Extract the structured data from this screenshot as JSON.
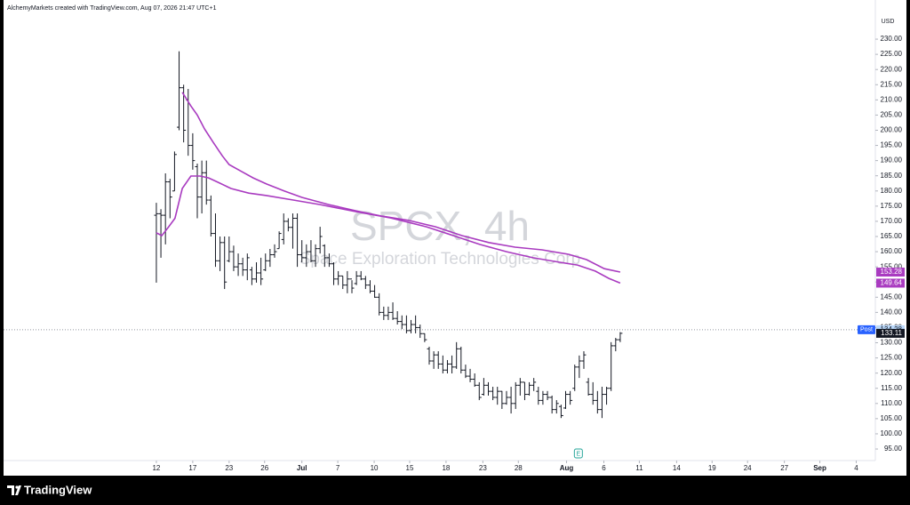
{
  "header": {
    "attribution": "AlchemyMarkets created with TradingView.com, Aug 07, 2026 21:47 UTC+1"
  },
  "branding": "TradingView",
  "chart_data": {
    "type": "ohlc",
    "title": "SPCX, 4h",
    "subtitle": "Space Exploration Technologies Corp",
    "currency": "USD",
    "color": "#131722",
    "grid": false,
    "log_scale": false,
    "x": [
      0,
      1,
      2,
      3,
      4,
      5,
      6,
      7,
      8,
      9,
      10,
      11,
      12,
      13,
      14,
      15,
      16,
      17,
      18,
      19,
      20,
      21,
      22,
      23,
      24,
      25,
      26,
      27,
      28,
      29,
      30,
      31,
      32,
      33,
      34,
      35,
      36,
      37,
      38,
      39,
      40,
      41,
      42,
      43,
      44,
      45,
      46,
      47,
      48,
      49,
      50,
      51,
      52,
      53,
      54,
      55,
      56,
      57,
      58,
      59,
      60,
      61,
      62,
      63,
      64,
      65,
      66,
      67,
      68,
      69,
      70,
      71,
      72,
      73,
      74,
      75,
      76,
      77,
      78,
      79,
      80,
      81,
      82,
      83,
      84,
      85,
      86,
      87,
      88,
      89,
      90,
      91,
      92,
      93,
      94,
      95,
      96,
      97,
      98,
      99,
      100,
      101,
      102
    ],
    "open": [
      172,
      172.5,
      172,
      183,
      180,
      201,
      214,
      210,
      195,
      188,
      178,
      186,
      177,
      166,
      157,
      163,
      157,
      160,
      155,
      156,
      154,
      154,
      151,
      153,
      154,
      157,
      159,
      161,
      164,
      170,
      168,
      171,
      159,
      158,
      160,
      157,
      161,
      162,
      158,
      156,
      151,
      152,
      149,
      151,
      149.5,
      152,
      151,
      149,
      147,
      145,
      140,
      139,
      140,
      138,
      137,
      136,
      134,
      136,
      135,
      133,
      128,
      124,
      126,
      123,
      121,
      123,
      122,
      128,
      121,
      119,
      118,
      116,
      113,
      116,
      114,
      112,
      114,
      110,
      112,
      110,
      116,
      117,
      113,
      116,
      114,
      111,
      113,
      112,
      108,
      109,
      108.5,
      113,
      115,
      122,
      124,
      117,
      113,
      111,
      108,
      113,
      115,
      129,
      131
    ],
    "high": [
      176.1,
      174,
      185.8,
      184,
      193,
      226,
      215,
      213.6,
      199,
      189,
      190,
      190,
      178.5,
      172.6,
      165,
      165,
      165,
      162,
      159.4,
      158,
      159.4,
      155,
      156.5,
      158,
      159.4,
      160.9,
      162.4,
      166.7,
      172.6,
      171,
      172.6,
      172.6,
      163.8,
      162.4,
      163.8,
      162.4,
      168.2,
      162.4,
      159.4,
      156.5,
      153.6,
      152,
      153.6,
      150.6,
      153.6,
      153.6,
      152,
      150.6,
      149,
      146.3,
      141.9,
      141.9,
      143.3,
      140.4,
      139,
      139,
      137.5,
      139,
      136,
      133.1,
      128.7,
      127.2,
      127.2,
      125.8,
      124.3,
      125.8,
      130.2,
      128.7,
      122.8,
      121.4,
      119.9,
      117,
      118.4,
      117,
      115.5,
      115.5,
      114.1,
      114.1,
      115.5,
      117,
      118.4,
      117,
      117,
      118.4,
      115.5,
      114.1,
      114.1,
      112.6,
      111.1,
      109.6,
      114.1,
      114.1,
      122.8,
      125.8,
      127.2,
      118.4,
      117,
      114.1,
      115.5,
      115.5,
      130.2,
      131.6,
      133.5
    ],
    "low": [
      149.8,
      158,
      162.4,
      171,
      180,
      200,
      196,
      191.6,
      187,
      171,
      172.6,
      175.5,
      165,
      155,
      153.6,
      147.7,
      156.5,
      153.6,
      152,
      152,
      150.6,
      149,
      149.8,
      149,
      153.6,
      155,
      158,
      161,
      162.4,
      166.7,
      161,
      155,
      156.5,
      155,
      156.5,
      155,
      159.4,
      155,
      155,
      149,
      149,
      147.7,
      146.3,
      146.3,
      149,
      150.6,
      147.7,
      146.3,
      144.8,
      139,
      137.5,
      137.5,
      137.5,
      136,
      134.5,
      133.1,
      133.1,
      133.1,
      131.6,
      130.2,
      122.8,
      121.4,
      121.4,
      119.9,
      119.9,
      119.9,
      121.4,
      119.9,
      118.4,
      117,
      115.5,
      111.1,
      112.6,
      112.6,
      111.1,
      109.6,
      108.2,
      109.6,
      106.7,
      108.2,
      112.6,
      111.1,
      112.6,
      114.1,
      109.6,
      109.6,
      111.1,
      106.7,
      106.7,
      105.2,
      108.2,
      109.6,
      114.1,
      118.4,
      121.4,
      112.6,
      109.6,
      106.7,
      105.2,
      109.6,
      114.1,
      127.2,
      130.2
    ],
    "close": [
      172.5,
      172,
      183,
      178,
      192,
      214,
      200,
      195,
      190,
      178,
      186,
      177,
      166,
      157,
      163,
      150,
      160,
      155,
      156,
      154,
      158,
      151,
      153,
      151,
      157,
      159,
      160,
      166,
      170,
      168,
      171,
      159,
      158,
      160,
      157,
      161,
      165,
      158,
      156,
      151,
      152,
      149,
      151,
      148,
      152,
      151,
      149,
      147,
      145,
      140,
      139,
      140,
      138,
      137,
      136,
      134,
      136,
      135,
      133,
      131,
      124,
      126,
      123,
      121,
      123,
      122,
      128,
      121,
      119,
      118,
      116,
      112,
      116,
      114,
      112,
      114,
      110,
      112,
      110,
      116,
      117,
      113,
      116,
      117,
      111,
      113,
      112,
      108,
      110,
      106,
      113,
      111,
      122,
      124,
      126,
      113,
      111,
      108,
      113,
      115,
      129,
      131,
      133.11
    ],
    "series": [
      {
        "color": "#a93bc0",
        "x": [
          5.7,
          7.6,
          9.0,
          10.6,
          12.5,
          14.5,
          16.0,
          18.4,
          21.3,
          24.2,
          28.1,
          32.0,
          37.9,
          43.8,
          49.6,
          55.5,
          61.4,
          67.2,
          73.1,
          78.9,
          84.8,
          90.7,
          94.6,
          98.5,
          102
        ],
        "values": [
          212.5,
          208,
          205,
          200.4,
          196,
          191.6,
          188.7,
          186.7,
          184.3,
          182.3,
          180,
          177.9,
          175.5,
          173.5,
          171.7,
          170.3,
          168.2,
          165.3,
          163,
          161.5,
          160.6,
          159.1,
          157.4,
          154.4,
          153.28
        ]
      },
      {
        "color": "#a93bc0",
        "x": [
          0,
          1.2,
          2.7,
          4.1,
          5.7,
          7.6,
          9.6,
          11.5,
          13.5,
          16.4,
          20.3,
          24.2,
          30.1,
          36.0,
          43.8,
          51.6,
          59.4,
          65.3,
          71.1,
          77.0,
          82.8,
          88.7,
          92.6,
          96.5,
          99.5,
          102
        ],
        "values": [
          166.2,
          165.3,
          168.2,
          171,
          180.8,
          184.9,
          184.9,
          184.3,
          182.9,
          180.8,
          179.3,
          178.5,
          177,
          175.5,
          173.2,
          171.1,
          168.2,
          165.3,
          162.4,
          160,
          158,
          156.5,
          155.6,
          153.6,
          151.2,
          149.64
        ]
      }
    ],
    "post_market": {
      "label": "Post",
      "value": 134.28,
      "color": "#2962ff"
    },
    "events": [
      {
        "label": "E",
        "x": 92.8
      }
    ],
    "xlim": [
      -33.6,
      158.1
    ],
    "xticks": [
      {
        "value": 0,
        "label": "12"
      },
      {
        "value": 8,
        "label": "17"
      },
      {
        "value": 16,
        "label": "23"
      },
      {
        "value": 23.8,
        "label": "26"
      },
      {
        "value": 32,
        "label": "Jul"
      },
      {
        "value": 39.9,
        "label": "7"
      },
      {
        "value": 47.9,
        "label": "10"
      },
      {
        "value": 55.7,
        "label": "15"
      },
      {
        "value": 63.7,
        "label": "18"
      },
      {
        "value": 71.8,
        "label": "23"
      },
      {
        "value": 79.6,
        "label": "28"
      },
      {
        "value": 90.2,
        "label": "Aug"
      },
      {
        "value": 98.4,
        "label": "6"
      },
      {
        "value": 106.2,
        "label": "11"
      },
      {
        "value": 114.4,
        "label": "14"
      },
      {
        "value": 122.2,
        "label": "19"
      },
      {
        "value": 130,
        "label": "24"
      },
      {
        "value": 138.1,
        "label": "27"
      },
      {
        "value": 145.9,
        "label": "Sep"
      },
      {
        "value": 153.9,
        "label": "4"
      }
    ],
    "ylim": [
      91.2,
      242.9
    ],
    "yticks": [
      {
        "value": 95,
        "label": "95.00"
      },
      {
        "value": 100,
        "label": "100.00"
      },
      {
        "value": 105,
        "label": "105.00"
      },
      {
        "value": 110,
        "label": "110.00"
      },
      {
        "value": 115,
        "label": "115.00"
      },
      {
        "value": 120,
        "label": "120.00"
      },
      {
        "value": 125,
        "label": "125.00"
      },
      {
        "value": 130,
        "label": "130.00"
      },
      {
        "value": 135,
        "label": "135.00"
      },
      {
        "value": 140,
        "label": "140.00"
      },
      {
        "value": 145,
        "label": "145.00"
      },
      {
        "value": 150,
        "label": "150.00"
      },
      {
        "value": 155,
        "label": "155.00"
      },
      {
        "value": 160,
        "label": "160.00"
      },
      {
        "value": 165,
        "label": "165.00"
      },
      {
        "value": 170,
        "label": "170.00"
      },
      {
        "value": 175,
        "label": "175.00"
      },
      {
        "value": 180,
        "label": "180.00"
      },
      {
        "value": 185,
        "label": "185.00"
      },
      {
        "value": 190,
        "label": "190.00"
      },
      {
        "value": 195,
        "label": "195.00"
      },
      {
        "value": 200,
        "label": "200.00"
      },
      {
        "value": 205,
        "label": "205.00"
      },
      {
        "value": 210,
        "label": "210.00"
      },
      {
        "value": 215,
        "label": "215.00"
      },
      {
        "value": 220,
        "label": "220.00"
      },
      {
        "value": 225,
        "label": "225.00"
      },
      {
        "value": 230,
        "label": "230.00"
      }
    ]
  }
}
